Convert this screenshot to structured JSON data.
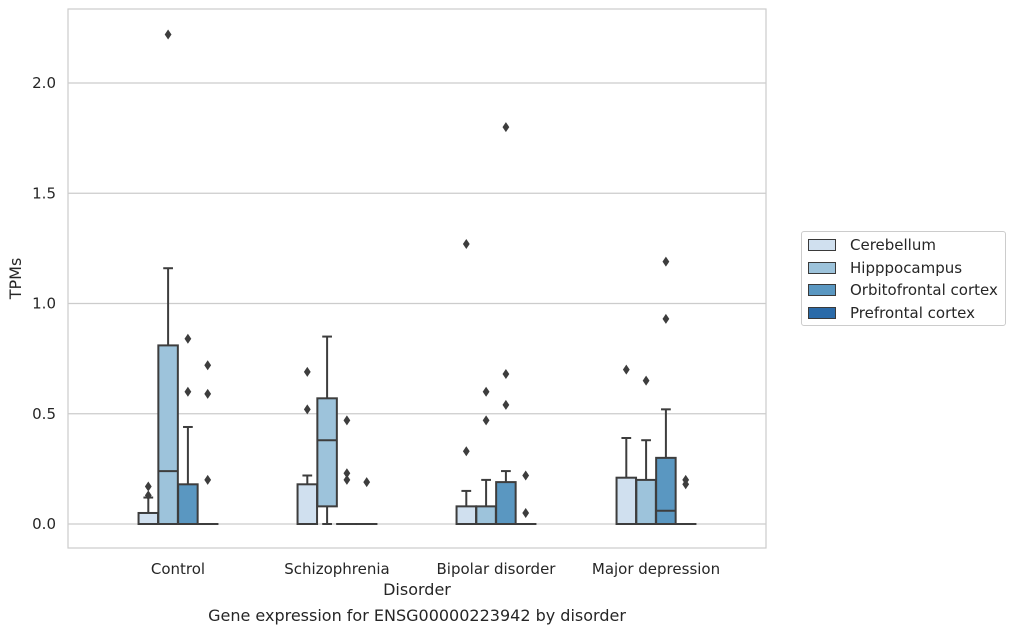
{
  "caption": "Gene expression for ENSG00000223942 by disorder",
  "chart_data": {
    "type": "box",
    "title": "",
    "xlabel": "Disorder",
    "ylabel": "TPMs",
    "ylim": [
      -0.11,
      2.35
    ],
    "yticks": [
      0.0,
      0.5,
      1.0,
      1.5,
      2.0
    ],
    "ytick_labels": [
      "0.0",
      "0.5",
      "1.0",
      "1.5",
      "2.0"
    ],
    "grid": "horizontal",
    "legend_position": "right",
    "categories": [
      "Control",
      "Schizophrenia",
      "Bipolar disorder",
      "Major depression"
    ],
    "series": [
      {
        "name": "Cerebellum",
        "color": "#d0e0ef",
        "boxes": [
          {
            "q1": 0.0,
            "median": 0.0,
            "q3": 0.05,
            "whisker_low": 0.0,
            "whisker_high": 0.12,
            "outliers": [
              0.13,
              0.17
            ]
          },
          {
            "q1": 0.0,
            "median": 0.0,
            "q3": 0.18,
            "whisker_low": 0.0,
            "whisker_high": 0.22,
            "outliers": [
              0.52,
              0.69
            ]
          },
          {
            "q1": 0.0,
            "median": 0.0,
            "q3": 0.08,
            "whisker_low": 0.0,
            "whisker_high": 0.15,
            "outliers": [
              0.33,
              1.27
            ]
          },
          {
            "q1": 0.0,
            "median": 0.0,
            "q3": 0.21,
            "whisker_low": 0.0,
            "whisker_high": 0.39,
            "outliers": [
              0.7
            ]
          }
        ]
      },
      {
        "name": "Hipppocampus",
        "color": "#9dc3db",
        "boxes": [
          {
            "q1": 0.0,
            "median": 0.24,
            "q3": 0.81,
            "whisker_low": 0.0,
            "whisker_high": 1.16,
            "outliers": [
              2.22
            ]
          },
          {
            "q1": 0.08,
            "median": 0.38,
            "q3": 0.57,
            "whisker_low": 0.0,
            "whisker_high": 0.85,
            "outliers": []
          },
          {
            "q1": 0.0,
            "median": 0.0,
            "q3": 0.08,
            "whisker_low": 0.0,
            "whisker_high": 0.2,
            "outliers": [
              0.47,
              0.6
            ]
          },
          {
            "q1": 0.0,
            "median": 0.0,
            "q3": 0.2,
            "whisker_low": 0.0,
            "whisker_high": 0.38,
            "outliers": [
              0.65
            ]
          }
        ]
      },
      {
        "name": "Orbitofrontal cortex",
        "color": "#5a97c1",
        "boxes": [
          {
            "q1": 0.0,
            "median": 0.0,
            "q3": 0.18,
            "whisker_low": 0.0,
            "whisker_high": 0.44,
            "outliers": [
              0.6,
              0.84
            ]
          },
          {
            "q1": 0.0,
            "median": 0.0,
            "q3": 0.0,
            "whisker_low": 0.0,
            "whisker_high": 0.0,
            "outliers": [
              0.2,
              0.23,
              0.47
            ]
          },
          {
            "q1": 0.0,
            "median": 0.0,
            "q3": 0.19,
            "whisker_low": 0.0,
            "whisker_high": 0.24,
            "outliers": [
              0.54,
              0.68,
              1.8
            ]
          },
          {
            "q1": 0.0,
            "median": 0.06,
            "q3": 0.3,
            "whisker_low": 0.0,
            "whisker_high": 0.52,
            "outliers": [
              0.93,
              1.19
            ]
          }
        ]
      },
      {
        "name": "Prefrontal cortex",
        "color": "#2a6aa8",
        "boxes": [
          {
            "q1": 0.0,
            "median": 0.0,
            "q3": 0.0,
            "whisker_low": 0.0,
            "whisker_high": 0.0,
            "outliers": [
              0.2,
              0.59,
              0.72
            ]
          },
          {
            "q1": 0.0,
            "median": 0.0,
            "q3": 0.0,
            "whisker_low": 0.0,
            "whisker_high": 0.0,
            "outliers": [
              0.19
            ]
          },
          {
            "q1": 0.0,
            "median": 0.0,
            "q3": 0.0,
            "whisker_low": 0.0,
            "whisker_high": 0.0,
            "outliers": [
              0.05,
              0.22
            ]
          },
          {
            "q1": 0.0,
            "median": 0.0,
            "q3": 0.0,
            "whisker_low": 0.0,
            "whisker_high": 0.0,
            "outliers": [
              0.18,
              0.2
            ]
          }
        ]
      }
    ]
  }
}
